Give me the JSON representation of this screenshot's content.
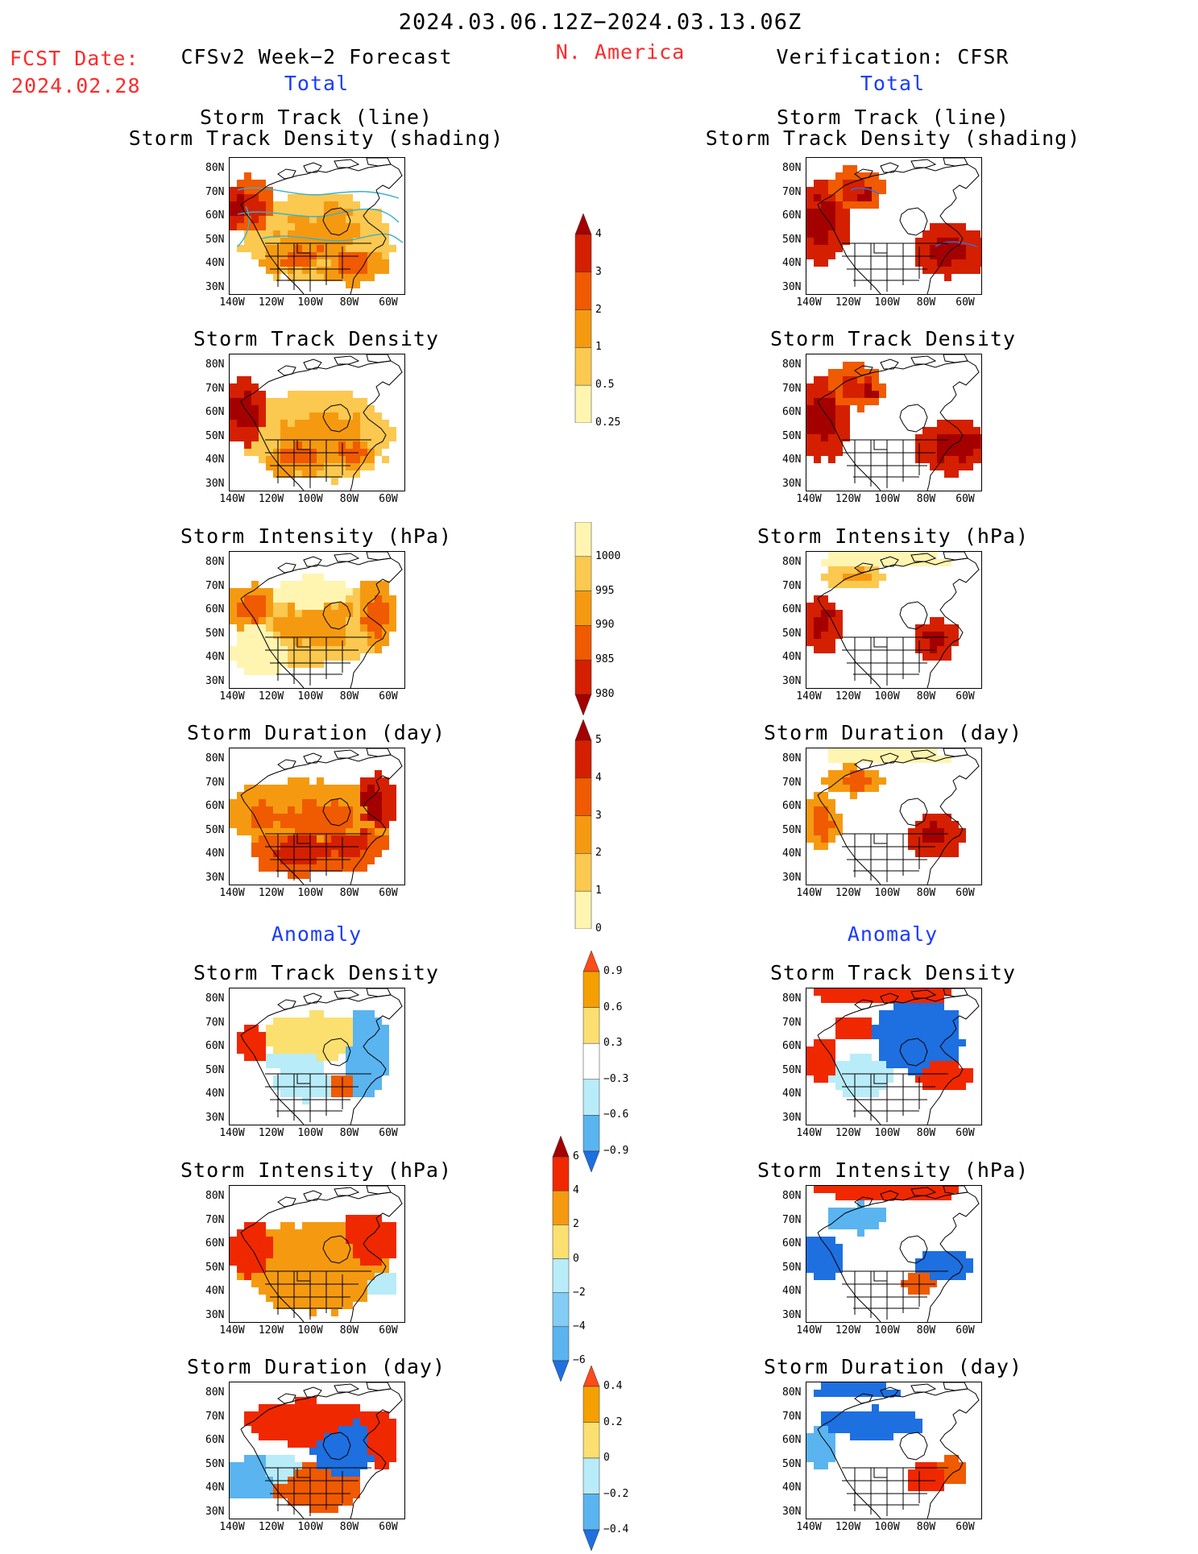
{
  "header": {
    "period": "2024.03.06.12Z−2024.03.13.06Z",
    "region": "N. America",
    "fcst_label": "FCST Date:",
    "fcst_date": "2024.02.28",
    "left_title": "CFSv2 Week−2 Forecast",
    "right_title": "Verification: CFSR",
    "left_total": "Total",
    "right_total": "Total",
    "left_anomaly": "Anomaly",
    "right_anomaly": "Anomaly"
  },
  "panel_titles": {
    "track": "Storm Track (line)\nStorm Track Density (shading)",
    "density": "Storm Track Density",
    "intensity": "Storm Intensity (hPa)",
    "duration": "Storm Duration (day)",
    "a_density": "Storm Track Density",
    "a_intensity": "Storm Intensity (hPa)",
    "a_duration": "Storm Duration (day)"
  },
  "axes": {
    "lat_labels": [
      "80N",
      "70N",
      "60N",
      "50N",
      "40N",
      "30N"
    ],
    "lon_labels": [
      "140W",
      "120W",
      "100W",
      "80W",
      "60W"
    ]
  },
  "colorbars": {
    "density": {
      "labels": [
        "4",
        "3",
        "2",
        "1",
        "0.5",
        "0.25"
      ],
      "colors": [
        "#a50000",
        "#d42000",
        "#f05a00",
        "#f59a10",
        "#fbc850",
        "#fff5b0"
      ]
    },
    "intensity": {
      "labels": [
        "1000",
        "995",
        "990",
        "985",
        "980"
      ],
      "colors": [
        "#fff5b0",
        "#fbc850",
        "#f59a10",
        "#f05a00",
        "#d42000",
        "#a50000"
      ]
    },
    "duration": {
      "labels": [
        "5",
        "4",
        "3",
        "2",
        "1",
        "0"
      ],
      "colors": [
        "#a50000",
        "#d42000",
        "#f05a00",
        "#f59a10",
        "#fbc850",
        "#fff5b0"
      ]
    },
    "a_density": {
      "labels": [
        "0.9",
        "0.6",
        "0.3",
        "−0.3",
        "−0.6",
        "−0.9"
      ],
      "colors": [
        "#ff4a1a",
        "#f5a000",
        "#fbe070",
        "#ffffff",
        "#b8ecf8",
        "#5ab4ef",
        "#1e6fe0"
      ]
    },
    "a_intensity": {
      "labels": [
        "6",
        "4",
        "2",
        "0",
        "−2",
        "−4",
        "−6"
      ],
      "colors": [
        "#a50000",
        "#f02800",
        "#f59a10",
        "#fbe070",
        "#b8ecf8",
        "#82ccf5",
        "#5ab4ef",
        "#1e6fe0"
      ]
    },
    "a_duration": {
      "labels": [
        "0.4",
        "0.2",
        "0",
        "−0.2",
        "−0.4"
      ],
      "colors": [
        "#ff4a1a",
        "#f5a000",
        "#fbe070",
        "#b8ecf8",
        "#5ab4ef",
        "#1e6fe0"
      ]
    }
  }
}
